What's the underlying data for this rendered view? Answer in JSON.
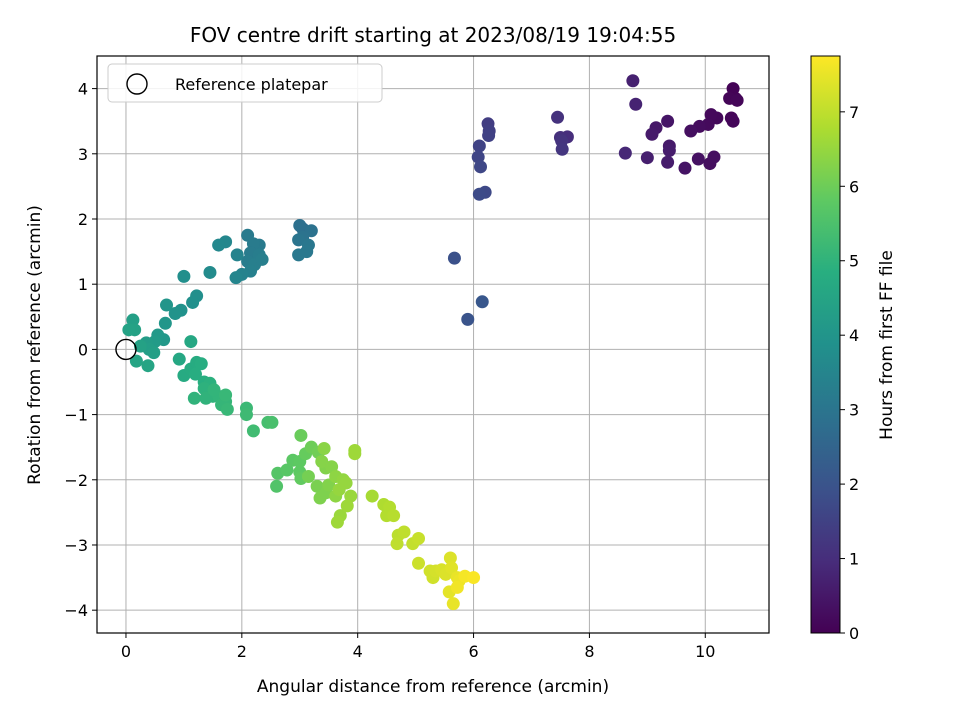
{
  "chart_data": {
    "type": "scatter",
    "title": "FOV centre drift starting at 2023/08/19 19:04:55",
    "xlabel": "Angular distance from reference (arcmin)",
    "ylabel": "Rotation from reference (arcmin)",
    "xlim": [
      -0.5,
      11.1
    ],
    "ylim": [
      -4.35,
      4.5
    ],
    "xticks": [
      0,
      2,
      4,
      6,
      8,
      10
    ],
    "yticks": [
      -4,
      -3,
      -2,
      -1,
      0,
      1,
      2,
      3,
      4
    ],
    "grid": true,
    "legend": {
      "placement": "top-left",
      "entries": [
        "Reference platepar"
      ]
    },
    "reference_point": {
      "x": 0,
      "y": 0
    },
    "colorbar": {
      "label": "Hours from first FF file",
      "colormap": "viridis",
      "range": [
        0,
        7.75
      ],
      "ticks": [
        0,
        1,
        2,
        3,
        4,
        5,
        6,
        7
      ]
    },
    "series": [
      {
        "color_by": "hours",
        "points": [
          [
            10.48,
            4.0,
            0.05
          ],
          [
            10.52,
            3.85,
            0.05
          ],
          [
            10.42,
            3.85,
            0.08
          ],
          [
            10.55,
            3.82,
            0.1
          ],
          [
            10.45,
            3.55,
            0.1
          ],
          [
            10.48,
            3.5,
            0.12
          ],
          [
            10.2,
            3.55,
            0.15
          ],
          [
            10.1,
            3.6,
            0.18
          ],
          [
            10.05,
            3.45,
            0.2
          ],
          [
            9.9,
            3.42,
            0.25
          ],
          [
            9.75,
            3.35,
            0.3
          ],
          [
            10.08,
            2.85,
            0.28
          ],
          [
            10.15,
            2.95,
            0.3
          ],
          [
            9.88,
            2.92,
            0.35
          ],
          [
            9.65,
            2.78,
            0.4
          ],
          [
            9.35,
            3.5,
            0.45
          ],
          [
            9.15,
            3.4,
            0.5
          ],
          [
            9.08,
            3.3,
            0.55
          ],
          [
            9.38,
            3.12,
            0.55
          ],
          [
            9.38,
            3.05,
            0.6
          ],
          [
            9.35,
            2.87,
            0.6
          ],
          [
            9.0,
            2.94,
            0.65
          ],
          [
            8.75,
            4.12,
            0.7
          ],
          [
            8.8,
            3.76,
            0.75
          ],
          [
            8.62,
            3.01,
            0.85
          ],
          [
            7.62,
            3.26,
            1.0
          ],
          [
            7.5,
            3.25,
            1.05
          ],
          [
            7.45,
            3.56,
            1.1
          ],
          [
            7.52,
            3.2,
            1.15
          ],
          [
            7.53,
            3.07,
            1.2
          ],
          [
            6.25,
            3.46,
            1.4
          ],
          [
            6.27,
            3.35,
            1.45
          ],
          [
            6.26,
            3.28,
            1.5
          ],
          [
            6.1,
            3.12,
            1.55
          ],
          [
            6.08,
            2.95,
            1.6
          ],
          [
            6.12,
            2.8,
            1.65
          ],
          [
            6.2,
            2.41,
            1.7
          ],
          [
            6.1,
            2.38,
            1.75
          ],
          [
            5.67,
            1.4,
            1.9
          ],
          [
            5.9,
            0.46,
            2.0
          ],
          [
            6.15,
            0.73,
            2.1
          ],
          [
            3.05,
            1.85,
            2.8
          ],
          [
            3.0,
            1.9,
            2.85
          ],
          [
            3.2,
            1.82,
            2.9
          ],
          [
            3.05,
            1.72,
            2.95
          ],
          [
            2.98,
            1.68,
            3.0
          ],
          [
            3.15,
            1.6,
            3.05
          ],
          [
            3.12,
            1.5,
            3.1
          ],
          [
            2.98,
            1.45,
            3.1
          ],
          [
            2.1,
            1.75,
            3.15
          ],
          [
            2.3,
            1.6,
            3.15
          ],
          [
            2.2,
            1.62,
            3.2
          ],
          [
            2.15,
            1.48,
            3.2
          ],
          [
            2.3,
            1.45,
            3.25
          ],
          [
            2.1,
            1.35,
            3.25
          ],
          [
            2.22,
            1.3,
            3.3
          ],
          [
            2.35,
            1.38,
            3.3
          ],
          [
            2.15,
            1.2,
            3.35
          ],
          [
            2.0,
            1.15,
            3.4
          ],
          [
            1.92,
            1.45,
            3.45
          ],
          [
            1.9,
            1.1,
            3.5
          ],
          [
            1.72,
            1.65,
            3.55
          ],
          [
            1.6,
            1.6,
            3.6
          ],
          [
            1.45,
            1.18,
            3.7
          ],
          [
            1.22,
            0.82,
            3.8
          ],
          [
            1.0,
            1.12,
            3.8
          ],
          [
            1.15,
            0.72,
            3.85
          ],
          [
            0.95,
            0.6,
            3.9
          ],
          [
            0.85,
            0.55,
            3.95
          ],
          [
            0.7,
            0.68,
            4.0
          ],
          [
            0.68,
            0.4,
            4.05
          ],
          [
            0.65,
            0.15,
            4.1
          ],
          [
            0.55,
            0.22,
            4.15
          ],
          [
            0.5,
            0.12,
            4.2
          ],
          [
            0.35,
            0.1,
            4.25
          ],
          [
            0.4,
            0.0,
            4.3
          ],
          [
            0.48,
            -0.05,
            4.35
          ],
          [
            0.25,
            0.05,
            4.4
          ],
          [
            0.12,
            0.45,
            4.35
          ],
          [
            0.15,
            0.3,
            4.4
          ],
          [
            0.05,
            0.3,
            4.45
          ],
          [
            0.18,
            -0.18,
            4.5
          ],
          [
            0.38,
            -0.25,
            4.5
          ],
          [
            0.92,
            -0.15,
            4.6
          ],
          [
            1.12,
            0.12,
            4.6
          ],
          [
            1.0,
            -0.4,
            4.7
          ],
          [
            1.12,
            -0.3,
            4.75
          ],
          [
            1.22,
            -0.2,
            4.75
          ],
          [
            1.3,
            -0.22,
            4.8
          ],
          [
            1.2,
            -0.38,
            4.8
          ],
          [
            1.35,
            -0.5,
            4.85
          ],
          [
            1.45,
            -0.52,
            4.9
          ],
          [
            1.35,
            -0.6,
            4.95
          ],
          [
            1.5,
            -0.72,
            5.0
          ],
          [
            1.38,
            -0.75,
            5.0
          ],
          [
            1.18,
            -0.75,
            5.0
          ],
          [
            1.6,
            -0.72,
            5.05
          ],
          [
            1.52,
            -0.62,
            5.05
          ],
          [
            1.65,
            -0.85,
            5.1
          ],
          [
            1.72,
            -0.8,
            5.1
          ],
          [
            1.75,
            -0.92,
            5.15
          ],
          [
            1.72,
            -0.7,
            5.15
          ],
          [
            2.08,
            -0.9,
            5.2
          ],
          [
            2.08,
            -1.0,
            5.25
          ],
          [
            2.2,
            -1.25,
            5.3
          ],
          [
            2.45,
            -1.12,
            5.4
          ],
          [
            2.52,
            -1.12,
            5.45
          ],
          [
            2.6,
            -2.1,
            5.6
          ],
          [
            2.62,
            -1.9,
            5.65
          ],
          [
            2.78,
            -1.85,
            5.7
          ],
          [
            2.88,
            -1.7,
            5.75
          ],
          [
            3.0,
            -1.72,
            5.8
          ],
          [
            3.0,
            -1.88,
            5.8
          ],
          [
            3.02,
            -1.98,
            5.85
          ],
          [
            3.1,
            -1.6,
            5.9
          ],
          [
            3.02,
            -1.32,
            5.95
          ],
          [
            3.2,
            -1.5,
            6.0
          ],
          [
            3.32,
            -1.58,
            6.05
          ],
          [
            3.15,
            -1.95,
            6.1
          ],
          [
            3.3,
            -2.1,
            6.15
          ],
          [
            3.35,
            -2.28,
            6.2
          ],
          [
            3.45,
            -2.2,
            6.2
          ],
          [
            3.5,
            -2.08,
            6.25
          ],
          [
            3.45,
            -1.82,
            6.25
          ],
          [
            3.38,
            -1.72,
            6.3
          ],
          [
            3.55,
            -1.8,
            6.3
          ],
          [
            3.42,
            -1.52,
            6.35
          ],
          [
            3.62,
            -1.95,
            6.4
          ],
          [
            3.62,
            -2.25,
            6.4
          ],
          [
            3.75,
            -2.0,
            6.45
          ],
          [
            3.8,
            -2.05,
            6.5
          ],
          [
            3.68,
            -2.15,
            6.5
          ],
          [
            3.88,
            -2.25,
            6.55
          ],
          [
            3.7,
            -2.55,
            6.55
          ],
          [
            3.65,
            -2.65,
            6.6
          ],
          [
            3.82,
            -2.4,
            6.6
          ],
          [
            3.95,
            -1.55,
            6.6
          ],
          [
            3.95,
            -1.6,
            6.6
          ],
          [
            4.25,
            -2.25,
            6.7
          ],
          [
            4.45,
            -2.38,
            6.8
          ],
          [
            4.55,
            -2.42,
            6.85
          ],
          [
            4.5,
            -2.55,
            6.85
          ],
          [
            4.62,
            -2.55,
            6.9
          ],
          [
            4.7,
            -2.85,
            6.95
          ],
          [
            4.68,
            -2.98,
            7.0
          ],
          [
            4.8,
            -2.8,
            7.0
          ],
          [
            4.95,
            -2.98,
            7.05
          ],
          [
            5.05,
            -2.9,
            7.1
          ],
          [
            5.05,
            -3.28,
            7.15
          ],
          [
            5.25,
            -3.4,
            7.2
          ],
          [
            5.3,
            -3.5,
            7.2
          ],
          [
            5.35,
            -3.4,
            7.25
          ],
          [
            5.45,
            -3.38,
            7.3
          ],
          [
            5.52,
            -3.45,
            7.35
          ],
          [
            5.6,
            -3.2,
            7.35
          ],
          [
            5.62,
            -3.35,
            7.4
          ],
          [
            5.58,
            -3.72,
            7.45
          ],
          [
            5.65,
            -3.9,
            7.5
          ],
          [
            5.72,
            -3.5,
            7.5
          ],
          [
            5.75,
            -3.55,
            7.55
          ],
          [
            5.72,
            -3.65,
            7.6
          ],
          [
            5.85,
            -3.48,
            7.65
          ],
          [
            6.0,
            -3.5,
            7.7
          ]
        ]
      }
    ]
  }
}
